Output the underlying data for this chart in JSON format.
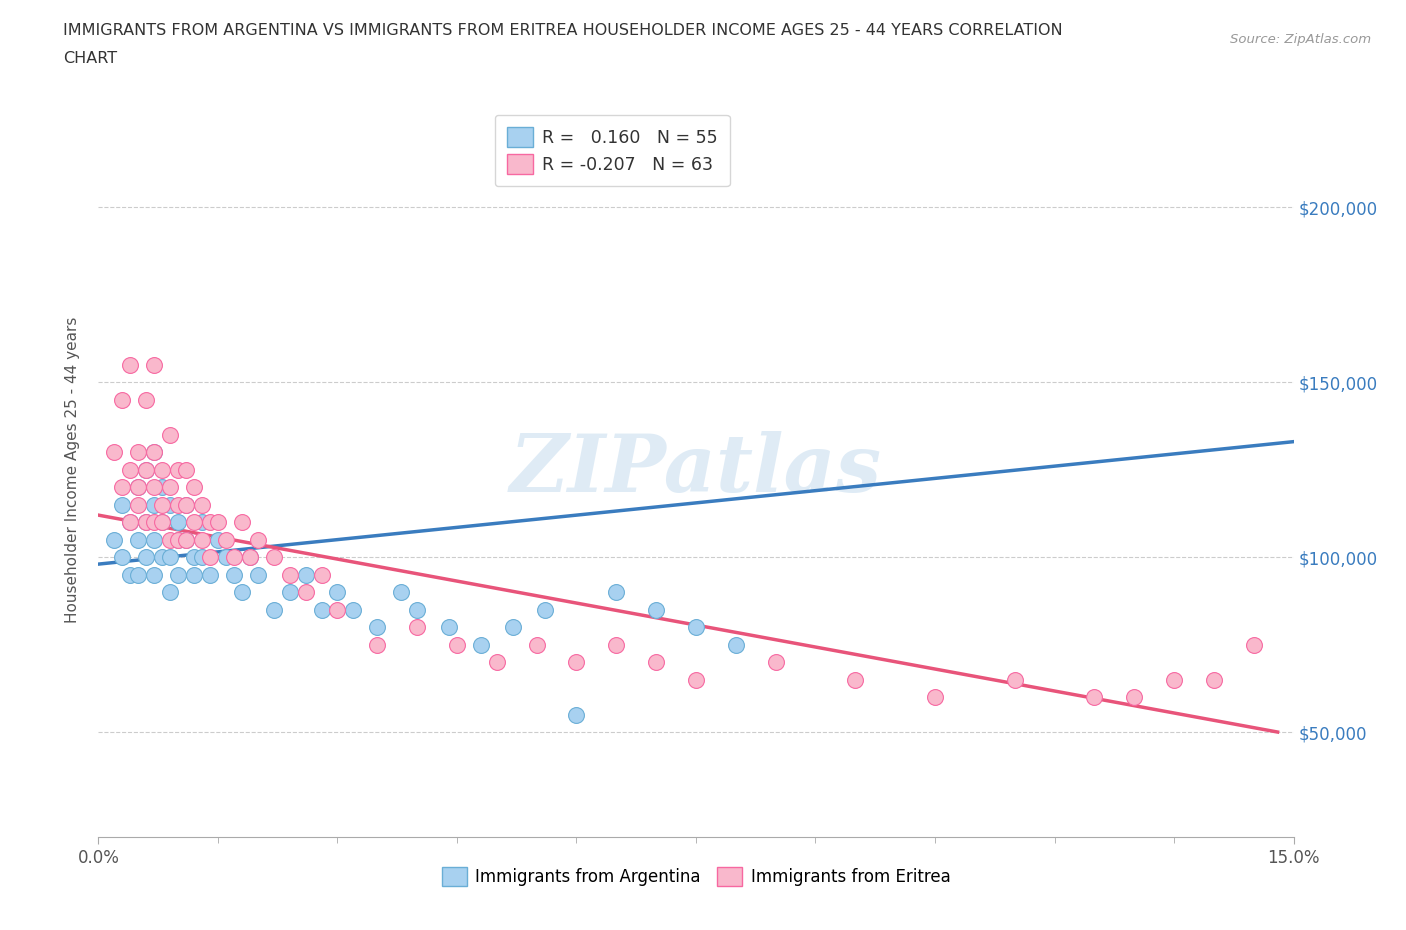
{
  "title_line1": "IMMIGRANTS FROM ARGENTINA VS IMMIGRANTS FROM ERITREA HOUSEHOLDER INCOME AGES 25 - 44 YEARS CORRELATION",
  "title_line2": "CHART",
  "source_text": "Source: ZipAtlas.com",
  "ylabel": "Householder Income Ages 25 - 44 years",
  "xlim": [
    0.0,
    0.15
  ],
  "ylim": [
    20000,
    230000
  ],
  "x_tick_major": [
    0.0,
    0.15
  ],
  "x_tick_minor_step": 0.015,
  "x_tick_label_left": "0.0%",
  "x_tick_label_right": "15.0%",
  "y_ticks": [
    50000,
    100000,
    150000,
    200000
  ],
  "y_tick_labels": [
    "$50,000",
    "$100,000",
    "$150,000",
    "$200,000"
  ],
  "r_argentina": 0.16,
  "n_argentina": 55,
  "r_eritrea": -0.207,
  "n_eritrea": 63,
  "color_argentina": "#a8d1f0",
  "color_eritrea": "#f9b8cc",
  "color_argentina_edge": "#6aaed6",
  "color_eritrea_edge": "#f768a1",
  "color_argentina_line": "#3a7cbf",
  "color_eritrea_line": "#e8547a",
  "argentina_x": [
    0.002,
    0.003,
    0.003,
    0.004,
    0.004,
    0.005,
    0.005,
    0.005,
    0.006,
    0.006,
    0.006,
    0.007,
    0.007,
    0.007,
    0.007,
    0.008,
    0.008,
    0.008,
    0.009,
    0.009,
    0.009,
    0.01,
    0.01,
    0.01,
    0.011,
    0.011,
    0.012,
    0.012,
    0.013,
    0.013,
    0.014,
    0.015,
    0.016,
    0.017,
    0.018,
    0.019,
    0.02,
    0.022,
    0.024,
    0.026,
    0.028,
    0.03,
    0.032,
    0.035,
    0.038,
    0.04,
    0.044,
    0.048,
    0.052,
    0.056,
    0.06,
    0.065,
    0.07,
    0.075,
    0.08
  ],
  "argentina_y": [
    105000,
    100000,
    115000,
    95000,
    110000,
    120000,
    105000,
    95000,
    110000,
    100000,
    125000,
    115000,
    105000,
    95000,
    130000,
    110000,
    100000,
    120000,
    115000,
    100000,
    90000,
    110000,
    105000,
    95000,
    115000,
    105000,
    100000,
    95000,
    110000,
    100000,
    95000,
    105000,
    100000,
    95000,
    90000,
    100000,
    95000,
    85000,
    90000,
    95000,
    85000,
    90000,
    85000,
    80000,
    90000,
    85000,
    80000,
    75000,
    80000,
    85000,
    55000,
    90000,
    85000,
    80000,
    75000
  ],
  "eritrea_x": [
    0.002,
    0.003,
    0.003,
    0.004,
    0.004,
    0.004,
    0.005,
    0.005,
    0.005,
    0.006,
    0.006,
    0.006,
    0.007,
    0.007,
    0.007,
    0.007,
    0.008,
    0.008,
    0.008,
    0.009,
    0.009,
    0.009,
    0.01,
    0.01,
    0.01,
    0.011,
    0.011,
    0.011,
    0.012,
    0.012,
    0.013,
    0.013,
    0.014,
    0.014,
    0.015,
    0.016,
    0.017,
    0.018,
    0.019,
    0.02,
    0.022,
    0.024,
    0.026,
    0.028,
    0.03,
    0.035,
    0.04,
    0.045,
    0.05,
    0.055,
    0.06,
    0.065,
    0.07,
    0.075,
    0.085,
    0.095,
    0.105,
    0.115,
    0.125,
    0.13,
    0.135,
    0.14,
    0.145
  ],
  "eritrea_y": [
    130000,
    120000,
    145000,
    110000,
    125000,
    155000,
    120000,
    130000,
    115000,
    125000,
    110000,
    145000,
    120000,
    110000,
    130000,
    155000,
    115000,
    125000,
    110000,
    120000,
    105000,
    135000,
    115000,
    105000,
    125000,
    115000,
    105000,
    125000,
    110000,
    120000,
    105000,
    115000,
    110000,
    100000,
    110000,
    105000,
    100000,
    110000,
    100000,
    105000,
    100000,
    95000,
    90000,
    95000,
    85000,
    75000,
    80000,
    75000,
    70000,
    75000,
    70000,
    75000,
    70000,
    65000,
    70000,
    65000,
    60000,
    65000,
    60000,
    60000,
    65000,
    65000,
    75000
  ],
  "argentina_trend_x": [
    0.0,
    0.15
  ],
  "argentina_trend_y": [
    98000,
    133000
  ],
  "eritrea_trend_x": [
    0.0,
    0.148
  ],
  "eritrea_trend_y": [
    112000,
    50000
  ],
  "watermark": "ZIPatlas",
  "background_color": "#ffffff",
  "grid_color": "#cccccc",
  "legend1_argentina": "R =   0.160   N = 55",
  "legend1_eritrea": "R = -0.207   N = 63",
  "legend2_argentina": "Immigrants from Argentina",
  "legend2_eritrea": "Immigrants from Eritrea"
}
